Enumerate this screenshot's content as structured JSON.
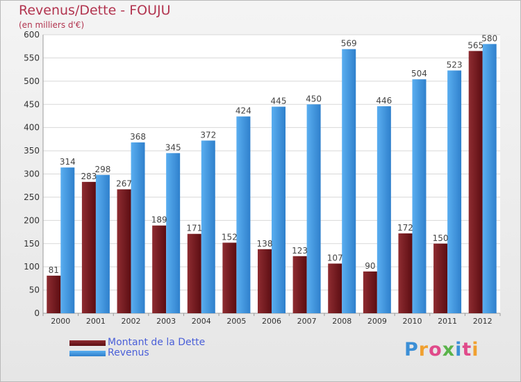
{
  "title": "Revenus/Dette - FOUJU",
  "subtitle": "(en milliers d'€)",
  "colors": {
    "debt_light": "#8e2c31",
    "debt_dark": "#5c0d12",
    "revenue_light": "#5aaef0",
    "revenue_dark": "#2f80cc",
    "grid": "#d8d8d8",
    "axis_text": "#333333",
    "title": "#b2344f",
    "legend_text": "#4a5fd8"
  },
  "legend": {
    "debt_label": "Montant de la Dette",
    "revenue_label": "Revenus"
  },
  "logo": {
    "letters": [
      "P",
      "r",
      "o",
      "x",
      "i",
      "t",
      "i"
    ],
    "colors": [
      "#3b8fd6",
      "#f0a030",
      "#e04a8a",
      "#5ab34a",
      "#3b8fd6",
      "#e04a8a",
      "#f0a030"
    ]
  },
  "chart_data": {
    "type": "bar",
    "categories": [
      "2000",
      "2001",
      "2002",
      "2003",
      "2004",
      "2005",
      "2006",
      "2007",
      "2008",
      "2009",
      "2010",
      "2011",
      "2012"
    ],
    "series": [
      {
        "name": "Montant de la Dette",
        "values": [
          81,
          283,
          267,
          189,
          171,
          152,
          138,
          123,
          107,
          90,
          172,
          150,
          565
        ]
      },
      {
        "name": "Revenus",
        "values": [
          314,
          298,
          368,
          345,
          372,
          424,
          445,
          450,
          569,
          446,
          504,
          523,
          580
        ]
      }
    ],
    "ylim": [
      0,
      600
    ],
    "yticks": [
      0,
      50,
      100,
      150,
      200,
      250,
      300,
      350,
      400,
      450,
      500,
      550,
      600
    ],
    "grid": true,
    "legend_position": "bottom-left",
    "data_labels": true
  }
}
